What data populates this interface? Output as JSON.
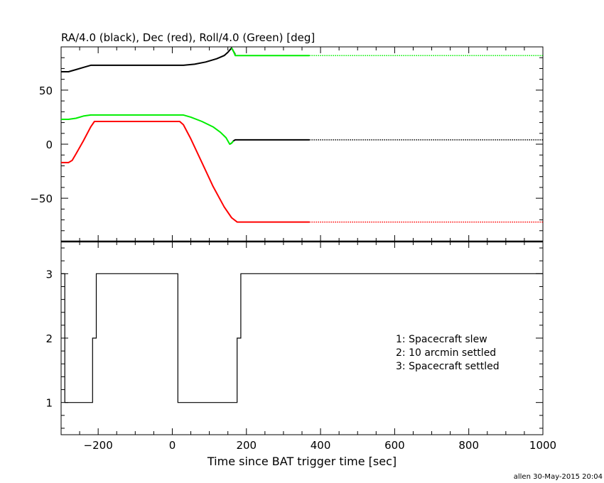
{
  "chart_data": [
    {
      "type": "line",
      "title": "RA/4.0 (black), Dec (red), Roll/4.0 (Green) [deg]",
      "xlim": [
        -300,
        1000
      ],
      "ylim": [
        -90,
        90
      ],
      "yticks": [
        -50,
        0,
        50
      ],
      "grid": false,
      "series": [
        {
          "color": "#000000",
          "points": [
            [
              -300,
              67
            ],
            [
              -280,
              67
            ],
            [
              -260,
              69
            ],
            [
              -240,
              71
            ],
            [
              -220,
              73
            ],
            [
              -200,
              73
            ],
            [
              -100,
              73
            ],
            [
              0,
              73
            ],
            [
              30,
              73
            ],
            [
              60,
              74
            ],
            [
              90,
              76
            ],
            [
              120,
              79
            ],
            [
              140,
              82
            ],
            [
              150,
              85
            ],
            [
              160,
              89
            ],
            [
              165,
              86
            ],
            [
              170,
              83
            ]
          ]
        },
        {
          "color": "#000000",
          "points": [
            [
              155,
              0
            ],
            [
              160,
              1
            ],
            [
              165,
              3
            ],
            [
              170,
              4
            ],
            [
              180,
              4
            ],
            [
              250,
              4
            ],
            [
              300,
              4
            ],
            [
              370,
              4
            ]
          ]
        },
        {
          "color": "#000000",
          "style": "dotted",
          "points": [
            [
              370,
              4
            ],
            [
              1000,
              4
            ]
          ]
        },
        {
          "color": "#00ee00",
          "points": [
            [
              -300,
              23
            ],
            [
              -280,
              23
            ],
            [
              -260,
              24
            ],
            [
              -240,
              26
            ],
            [
              -220,
              27
            ],
            [
              -200,
              27
            ],
            [
              -100,
              27
            ],
            [
              0,
              27
            ],
            [
              30,
              27
            ],
            [
              50,
              25
            ],
            [
              80,
              21
            ],
            [
              110,
              16
            ],
            [
              130,
              11
            ],
            [
              145,
              6
            ],
            [
              155,
              0
            ],
            [
              160,
              1
            ],
            [
              165,
              3
            ]
          ]
        },
        {
          "color": "#00ee00",
          "points": [
            [
              160,
              89
            ],
            [
              165,
              86
            ],
            [
              170,
              82
            ],
            [
              180,
              82
            ],
            [
              250,
              82
            ],
            [
              300,
              82
            ],
            [
              370,
              82
            ]
          ]
        },
        {
          "color": "#00ee00",
          "style": "dotted",
          "points": [
            [
              370,
              82
            ],
            [
              1000,
              82
            ]
          ]
        },
        {
          "color": "#ff0000",
          "points": [
            [
              -300,
              -17
            ],
            [
              -280,
              -17
            ],
            [
              -270,
              -15
            ],
            [
              -260,
              -9
            ],
            [
              -240,
              3
            ],
            [
              -220,
              16
            ],
            [
              -210,
              21
            ],
            [
              -200,
              21
            ],
            [
              -100,
              21
            ],
            [
              0,
              21
            ],
            [
              20,
              21
            ],
            [
              30,
              18
            ],
            [
              50,
              5
            ],
            [
              80,
              -17
            ],
            [
              110,
              -39
            ],
            [
              140,
              -58
            ],
            [
              160,
              -68
            ],
            [
              175,
              -72
            ],
            [
              185,
              -72
            ],
            [
              250,
              -72
            ],
            [
              300,
              -72
            ],
            [
              370,
              -72
            ]
          ]
        },
        {
          "color": "#ff0000",
          "style": "dotted",
          "points": [
            [
              370,
              -72
            ],
            [
              1000,
              -72
            ]
          ]
        }
      ]
    },
    {
      "type": "line",
      "xlabel": "Time since BAT trigger time [sec]",
      "xlim": [
        -300,
        1000
      ],
      "ylim": [
        0.5,
        3.5
      ],
      "xticks": [
        -200,
        0,
        200,
        400,
        600,
        800,
        1000
      ],
      "yticks": [
        1,
        2,
        3
      ],
      "grid": false,
      "legend": [
        "1: Spacecraft slew",
        "2: 10 arcmin settled",
        "3: Spacecraft settled"
      ],
      "legend_placement": "right",
      "series": [
        {
          "color": "#000000",
          "step": true,
          "points": [
            [
              -300,
              3
            ],
            [
              -290,
              3
            ],
            [
              -290,
              1
            ],
            [
              -215,
              1
            ],
            [
              -215,
              2
            ],
            [
              -205,
              2
            ],
            [
              -205,
              3
            ],
            [
              15,
              3
            ],
            [
              15,
              1
            ],
            [
              175,
              1
            ],
            [
              175,
              2
            ],
            [
              185,
              2
            ],
            [
              185,
              3
            ],
            [
              1000,
              3
            ]
          ]
        }
      ]
    }
  ],
  "footer": "allen 30-May-2015 20:04"
}
